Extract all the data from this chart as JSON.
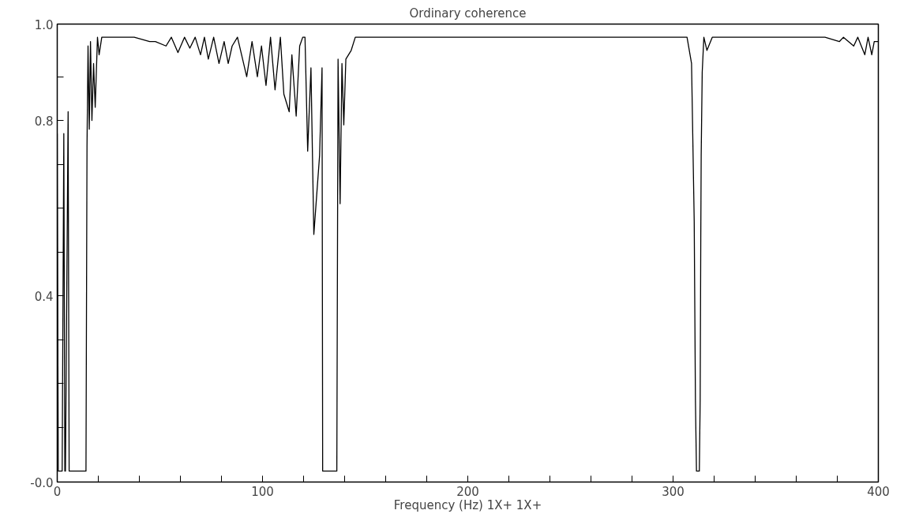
{
  "chart_data": {
    "type": "line",
    "title": "Ordinary coherence",
    "xlabel": "Frequency (Hz) 1X+ 1X+",
    "x": [
      0,
      0.5,
      2.4,
      3.2,
      3.7,
      4,
      5.3,
      5.8,
      14,
      14.5,
      15,
      15.6,
      16.2,
      16.9,
      17.7,
      18.5,
      19.6,
      20.4,
      21.7,
      23.3,
      30,
      37.5,
      45,
      47.8,
      53,
      55.6,
      58.8,
      62,
      64.6,
      67.2,
      69.8,
      71.7,
      73.6,
      76.2,
      78.8,
      81.3,
      83.3,
      85.2,
      87.8,
      89.8,
      92.3,
      94.9,
      97.5,
      99.5,
      101.7,
      103.9,
      106.1,
      108.7,
      110.4,
      113,
      114.3,
      116.4,
      118.1,
      119.6,
      120.7,
      122,
      123.6,
      125,
      127.8,
      129,
      129.3,
      136.2,
      136.8,
      137.8,
      138.7,
      139.6,
      140.6,
      143.2,
      145.2,
      160,
      180,
      200,
      220,
      240,
      260,
      280,
      300,
      306.8,
      309,
      310.3,
      310.9,
      311.4,
      312.8,
      313.2,
      313.5,
      313.7,
      314.2,
      315,
      316.5,
      319.1,
      330,
      350,
      374,
      381,
      383,
      388,
      390,
      393.4,
      395,
      396.8,
      398,
      400
    ],
    "series": [
      {
        "color": "#000000",
        "values": [
          0.77,
          0,
          0,
          0.77,
          0,
          0,
          0.82,
          0,
          0,
          0.74,
          0.97,
          0.78,
          0.98,
          0.8,
          0.93,
          0.83,
          0.99,
          0.95,
          0.99,
          0.99,
          0.99,
          0.99,
          0.98,
          0.98,
          0.97,
          0.99,
          0.955,
          0.99,
          0.965,
          0.99,
          0.95,
          0.99,
          0.94,
          0.99,
          0.93,
          0.98,
          0.93,
          0.97,
          0.99,
          0.95,
          0.9,
          0.98,
          0.9,
          0.97,
          0.88,
          0.99,
          0.87,
          0.99,
          0.86,
          0.82,
          0.95,
          0.81,
          0.97,
          0.99,
          0.99,
          0.73,
          0.92,
          0.54,
          0.72,
          0.92,
          0,
          0,
          0.94,
          0.61,
          0.93,
          0.79,
          0.94,
          0.96,
          0.99,
          0.99,
          0.99,
          0.99,
          0.99,
          0.99,
          0.99,
          0.99,
          0.99,
          0.99,
          0.93,
          0.57,
          0.16,
          0,
          0,
          0.16,
          0.53,
          0.72,
          0.91,
          0.99,
          0.96,
          0.99,
          0.99,
          0.99,
          0.99,
          0.98,
          0.99,
          0.97,
          0.99,
          0.95,
          0.99,
          0.95,
          0.98,
          0.98
        ]
      }
    ],
    "xlim": [
      0,
      400
    ],
    "xticks": [
      0,
      {
        "value": 20,
        "label": null
      },
      {
        "value": 40,
        "label": null
      },
      {
        "value": 60,
        "label": null
      },
      {
        "value": 80,
        "label": null
      },
      100,
      {
        "value": 120,
        "label": null
      },
      {
        "value": 140,
        "label": null
      },
      {
        "value": 160,
        "label": null
      },
      {
        "value": 180,
        "label": null
      },
      200,
      {
        "value": 220,
        "label": null
      },
      {
        "value": 240,
        "label": null
      },
      {
        "value": 260,
        "label": null
      },
      {
        "value": 280,
        "label": null
      },
      300,
      {
        "value": 320,
        "label": null
      },
      {
        "value": 340,
        "label": null
      },
      {
        "value": 360,
        "label": null
      },
      {
        "value": 380,
        "label": null
      },
      400
    ],
    "ylim": [
      -0.025,
      1.02
    ],
    "yticks": [
      {
        "value": -0.025,
        "label": "-0.0"
      },
      {
        "value": 0.1,
        "label": null
      },
      {
        "value": 0.2,
        "label": null
      },
      {
        "value": 0.3,
        "label": null
      },
      {
        "value": 0.4,
        "label": "0.4"
      },
      {
        "value": 0.5,
        "label": null
      },
      {
        "value": 0.6,
        "label": null
      },
      {
        "value": 0.7,
        "label": null
      },
      {
        "value": 0.8,
        "label": "0.8"
      },
      {
        "value": 0.9,
        "label": null
      },
      {
        "value": 1.02,
        "label": "1.0"
      }
    ],
    "grid": false,
    "marker": "none",
    "line_style": "solid"
  }
}
